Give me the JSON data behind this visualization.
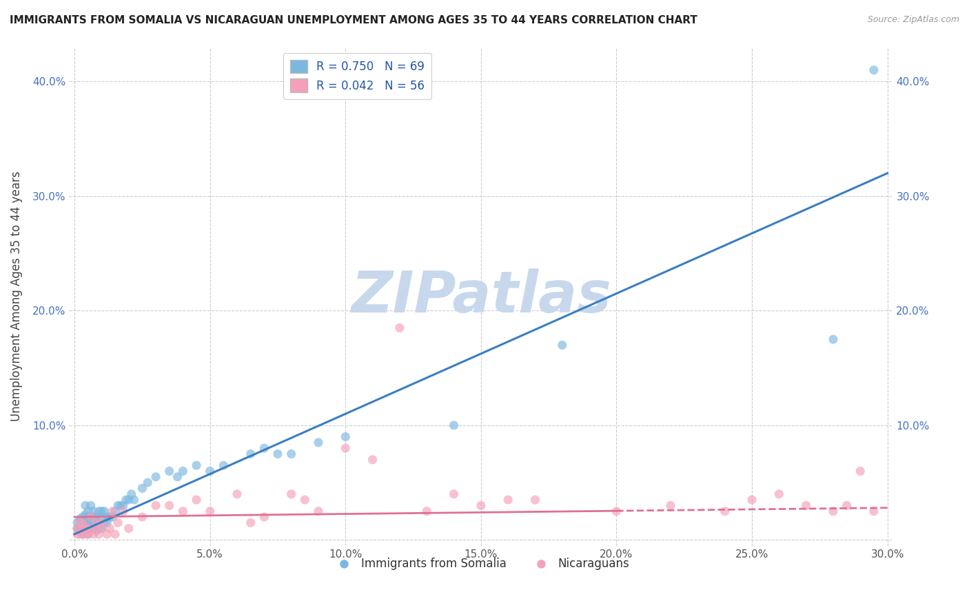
{
  "title": "IMMIGRANTS FROM SOMALIA VS NICARAGUAN UNEMPLOYMENT AMONG AGES 35 TO 44 YEARS CORRELATION CHART",
  "source": "Source: ZipAtlas.com",
  "ylabel": "Unemployment Among Ages 35 to 44 years",
  "xlim": [
    0.0,
    0.3
  ],
  "ylim": [
    -0.005,
    0.43
  ],
  "xticks": [
    0.0,
    0.05,
    0.1,
    0.15,
    0.2,
    0.25,
    0.3
  ],
  "xtick_labels": [
    "0.0%",
    "5.0%",
    "10.0%",
    "15.0%",
    "20.0%",
    "25.0%",
    "30.0%"
  ],
  "yticks": [
    0.0,
    0.1,
    0.2,
    0.3,
    0.4
  ],
  "ytick_labels": [
    "",
    "10.0%",
    "20.0%",
    "30.0%",
    "40.0%"
  ],
  "somalia_R": 0.75,
  "somalia_N": 69,
  "nicaragua_R": 0.042,
  "nicaragua_N": 56,
  "somalia_color": "#7bb8e0",
  "nicaragua_color": "#f4a0b8",
  "somalia_line_color": "#3a7fc1",
  "nicaragua_line_color": "#e07090",
  "watermark_text": "ZIPatlas",
  "watermark_color": "#c8d8ec",
  "legend_somalia_label": "Immigrants from Somalia",
  "legend_nicaragua_label": "Nicaraguans",
  "somalia_line_x0": 0.0,
  "somalia_line_y0": 0.005,
  "somalia_line_x1": 0.3,
  "somalia_line_y1": 0.32,
  "nicaragua_line_x0": 0.0,
  "nicaragua_line_y0": 0.02,
  "nicaragua_line_x1": 0.3,
  "nicaragua_line_y1": 0.028,
  "somalia_scatter_x": [
    0.001,
    0.001,
    0.002,
    0.002,
    0.002,
    0.003,
    0.003,
    0.003,
    0.003,
    0.004,
    0.004,
    0.004,
    0.004,
    0.004,
    0.005,
    0.005,
    0.005,
    0.005,
    0.005,
    0.006,
    0.006,
    0.006,
    0.006,
    0.007,
    0.007,
    0.007,
    0.007,
    0.008,
    0.008,
    0.008,
    0.009,
    0.009,
    0.009,
    0.01,
    0.01,
    0.01,
    0.011,
    0.011,
    0.012,
    0.012,
    0.013,
    0.014,
    0.015,
    0.016,
    0.017,
    0.018,
    0.019,
    0.02,
    0.021,
    0.022,
    0.025,
    0.027,
    0.03,
    0.035,
    0.038,
    0.04,
    0.045,
    0.05,
    0.055,
    0.065,
    0.07,
    0.075,
    0.08,
    0.09,
    0.1,
    0.14,
    0.18,
    0.28,
    0.295
  ],
  "somalia_scatter_y": [
    0.01,
    0.015,
    0.008,
    0.012,
    0.018,
    0.005,
    0.01,
    0.015,
    0.02,
    0.008,
    0.012,
    0.018,
    0.022,
    0.03,
    0.005,
    0.01,
    0.015,
    0.02,
    0.025,
    0.01,
    0.015,
    0.02,
    0.03,
    0.01,
    0.015,
    0.02,
    0.025,
    0.008,
    0.015,
    0.02,
    0.01,
    0.015,
    0.025,
    0.01,
    0.02,
    0.025,
    0.015,
    0.025,
    0.015,
    0.02,
    0.02,
    0.02,
    0.025,
    0.03,
    0.03,
    0.03,
    0.035,
    0.035,
    0.04,
    0.035,
    0.045,
    0.05,
    0.055,
    0.06,
    0.055,
    0.06,
    0.065,
    0.06,
    0.065,
    0.075,
    0.08,
    0.075,
    0.075,
    0.085,
    0.09,
    0.1,
    0.17,
    0.175,
    0.41
  ],
  "nicaragua_scatter_x": [
    0.001,
    0.001,
    0.002,
    0.002,
    0.003,
    0.003,
    0.003,
    0.004,
    0.004,
    0.005,
    0.005,
    0.006,
    0.006,
    0.007,
    0.008,
    0.008,
    0.009,
    0.01,
    0.01,
    0.012,
    0.013,
    0.014,
    0.015,
    0.016,
    0.018,
    0.02,
    0.025,
    0.03,
    0.035,
    0.04,
    0.045,
    0.05,
    0.06,
    0.065,
    0.07,
    0.08,
    0.085,
    0.09,
    0.1,
    0.11,
    0.12,
    0.13,
    0.14,
    0.15,
    0.16,
    0.17,
    0.2,
    0.22,
    0.24,
    0.25,
    0.26,
    0.27,
    0.28,
    0.285,
    0.29,
    0.295
  ],
  "nicaragua_scatter_y": [
    0.005,
    0.01,
    0.005,
    0.015,
    0.005,
    0.01,
    0.015,
    0.005,
    0.01,
    0.005,
    0.01,
    0.01,
    0.02,
    0.005,
    0.01,
    0.015,
    0.005,
    0.01,
    0.015,
    0.005,
    0.01,
    0.025,
    0.005,
    0.015,
    0.025,
    0.01,
    0.02,
    0.03,
    0.03,
    0.025,
    0.035,
    0.025,
    0.04,
    0.015,
    0.02,
    0.04,
    0.035,
    0.025,
    0.08,
    0.07,
    0.185,
    0.025,
    0.04,
    0.03,
    0.035,
    0.035,
    0.025,
    0.03,
    0.025,
    0.035,
    0.04,
    0.03,
    0.025,
    0.03,
    0.06,
    0.025
  ]
}
